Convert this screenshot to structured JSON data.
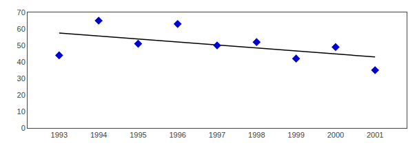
{
  "chart_data": {
    "type": "scatter",
    "series": [
      {
        "type": "scatter",
        "marker": "diamond",
        "color": "#0000CC",
        "x": [
          1993,
          1994,
          1995,
          1996,
          1997,
          1998,
          1999,
          2000,
          2001
        ],
        "values": [
          44,
          65,
          51,
          63,
          50,
          52,
          42,
          49,
          35
        ]
      },
      {
        "type": "line",
        "line_style": "solid",
        "color": "#000000",
        "x": [
          1993,
          2001
        ],
        "values": [
          57.5,
          43.0
        ]
      }
    ],
    "xlim": [
      1992.2,
      2001.8
    ],
    "xticks": [
      1993,
      1994,
      1995,
      1996,
      1997,
      1998,
      1999,
      2000,
      2001
    ],
    "ylim": [
      0,
      70
    ],
    "yticks": [
      0,
      10,
      20,
      30,
      40,
      50,
      60,
      70
    ],
    "grid": false
  }
}
